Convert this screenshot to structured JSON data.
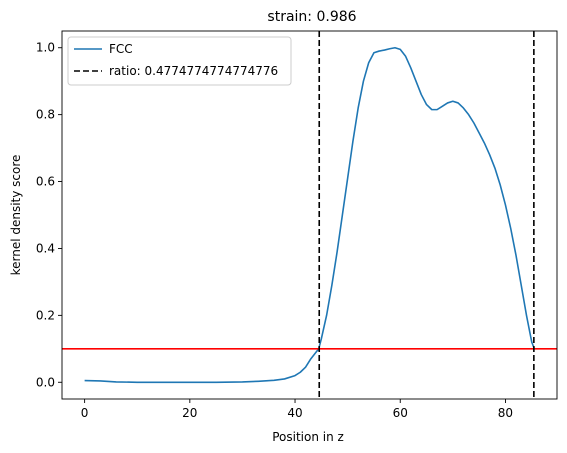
{
  "chart_data": {
    "type": "line",
    "title": "strain: 0.986",
    "xlabel": "Position in z",
    "ylabel": "kernel density score",
    "xlim": [
      -4.3,
      89.8
    ],
    "ylim": [
      -0.05,
      1.05
    ],
    "xticks": [
      0,
      20,
      40,
      60,
      80
    ],
    "yticks": [
      0.0,
      0.2,
      0.4,
      0.6,
      0.8,
      1.0
    ],
    "xtick_labels": [
      "0",
      "20",
      "40",
      "60",
      "80"
    ],
    "ytick_labels": [
      "0.0",
      "0.2",
      "0.4",
      "0.6",
      "0.8",
      "1.0"
    ],
    "grid": false,
    "legend_position": "top-left",
    "series": [
      {
        "name": "FCC",
        "color": "#1f77b4",
        "x": [
          0,
          3,
          6,
          10,
          15,
          20,
          25,
          30,
          33,
          36,
          38,
          40,
          41,
          42,
          43,
          44,
          44.5,
          45,
          46,
          47,
          48,
          49,
          50,
          51,
          52,
          53,
          54,
          55,
          56,
          57,
          58,
          59,
          60,
          61,
          62,
          63,
          64,
          65,
          66,
          67,
          68,
          69,
          70,
          71,
          72,
          73,
          74,
          75,
          76,
          77,
          78,
          79,
          80,
          81,
          82,
          83,
          84,
          85,
          85.5
        ],
        "y": [
          0.005,
          0.004,
          0.001,
          0.0,
          0.0,
          0.0,
          0.0,
          0.001,
          0.003,
          0.006,
          0.01,
          0.02,
          0.03,
          0.045,
          0.07,
          0.09,
          0.1,
          0.13,
          0.2,
          0.29,
          0.39,
          0.5,
          0.61,
          0.72,
          0.82,
          0.9,
          0.955,
          0.985,
          0.99,
          0.993,
          0.997,
          1.0,
          0.995,
          0.975,
          0.94,
          0.9,
          0.86,
          0.83,
          0.815,
          0.815,
          0.825,
          0.835,
          0.84,
          0.835,
          0.82,
          0.8,
          0.775,
          0.745,
          0.715,
          0.68,
          0.64,
          0.59,
          0.53,
          0.46,
          0.38,
          0.29,
          0.2,
          0.12,
          0.1
        ]
      }
    ],
    "vlines": [
      {
        "name": "ratio: 0.4774774774774776",
        "x": [
          44.6,
          85.4
        ],
        "color": "#000000",
        "style": "dashed"
      }
    ],
    "hline": {
      "y": 0.1,
      "color": "#ff0000"
    }
  }
}
